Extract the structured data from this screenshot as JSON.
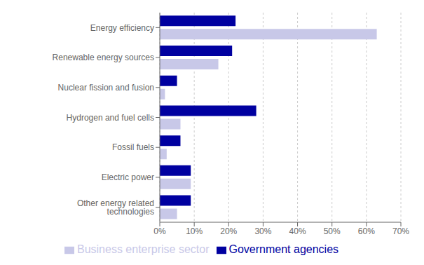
{
  "chart_data": {
    "type": "bar",
    "orientation": "horizontal",
    "categories": [
      "Energy efficiency",
      "Renewable energy sources",
      "Nuclear fission and fusion",
      "Hydrogen and fuel cells",
      "Fossil fuels",
      "Electric power",
      "Other energy related technologies"
    ],
    "series": [
      {
        "name": "Government agencies",
        "color": "#0000a0",
        "values": [
          22,
          21,
          5,
          28,
          6,
          9,
          9
        ]
      },
      {
        "name": "Business enterprise sector",
        "color": "#c8c8e8",
        "values": [
          63,
          17,
          1.5,
          6,
          2,
          9,
          5
        ]
      }
    ],
    "xlim": [
      0,
      70
    ],
    "xticks": [
      {
        "value": 0,
        "label": "0%"
      },
      {
        "value": 10,
        "label": "10%"
      },
      {
        "value": 20,
        "label": "20%"
      },
      {
        "value": 30,
        "label": "30%"
      },
      {
        "value": 40,
        "label": "40%"
      },
      {
        "value": 50,
        "label": "50%"
      },
      {
        "value": 60,
        "label": "60%"
      },
      {
        "value": 70,
        "label": "70%"
      }
    ],
    "grid": true,
    "legend": "bottom"
  }
}
